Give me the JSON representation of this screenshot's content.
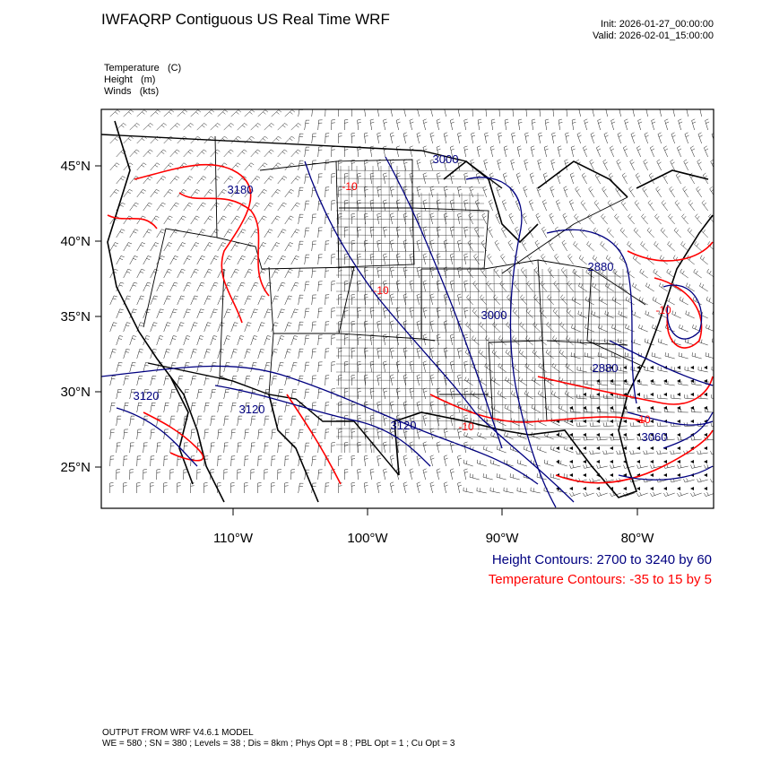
{
  "header": {
    "title": "IWFAQRP Contiguous US Real Time WRF",
    "init_label": "Init: 2026-01-27_00:00:00",
    "valid_label": "Valid: 2026-02-01_15:00:00"
  },
  "fields": [
    {
      "name": "Temperature",
      "units": "(C)"
    },
    {
      "name": "Height",
      "units": "(m)"
    },
    {
      "name": "Winds",
      "units": "(kts)"
    }
  ],
  "axes": {
    "lat_ticks": [
      {
        "value": 45,
        "label": "45°N"
      },
      {
        "value": 40,
        "label": "40°N"
      },
      {
        "value": 35,
        "label": "35°N"
      },
      {
        "value": 30,
        "label": "30°N"
      },
      {
        "value": 25,
        "label": "25°N"
      }
    ],
    "lon_ticks": [
      {
        "value": -110,
        "label": "110°W"
      },
      {
        "value": -100,
        "label": "100°W"
      },
      {
        "value": -90,
        "label": "90°W"
      },
      {
        "value": -80,
        "label": "80°W"
      }
    ]
  },
  "contour_labels": {
    "height": [
      "3000",
      "3180",
      "3120",
      "3120",
      "3120",
      "3000",
      "2880",
      "2880",
      "3060"
    ],
    "temperature": [
      "-10",
      "-10",
      "-10",
      "-10",
      "-10"
    ]
  },
  "legend": {
    "height_text": "Height Contours: 2700 to 3240 by 60",
    "temp_text": "Temperature Contours: -35 to 15 by 5"
  },
  "footer": {
    "line1": "OUTPUT FROM WRF V4.6.1 MODEL",
    "line2": "WE = 580 ; SN = 380 ; Levels = 38 ; Dis = 8km ; Phys Opt = 8 ; PBL Opt = 1 ; Cu Opt = 3"
  },
  "colors": {
    "height_contour": "#000080",
    "temp_contour": "#ff0000",
    "boundary": "#000000"
  }
}
